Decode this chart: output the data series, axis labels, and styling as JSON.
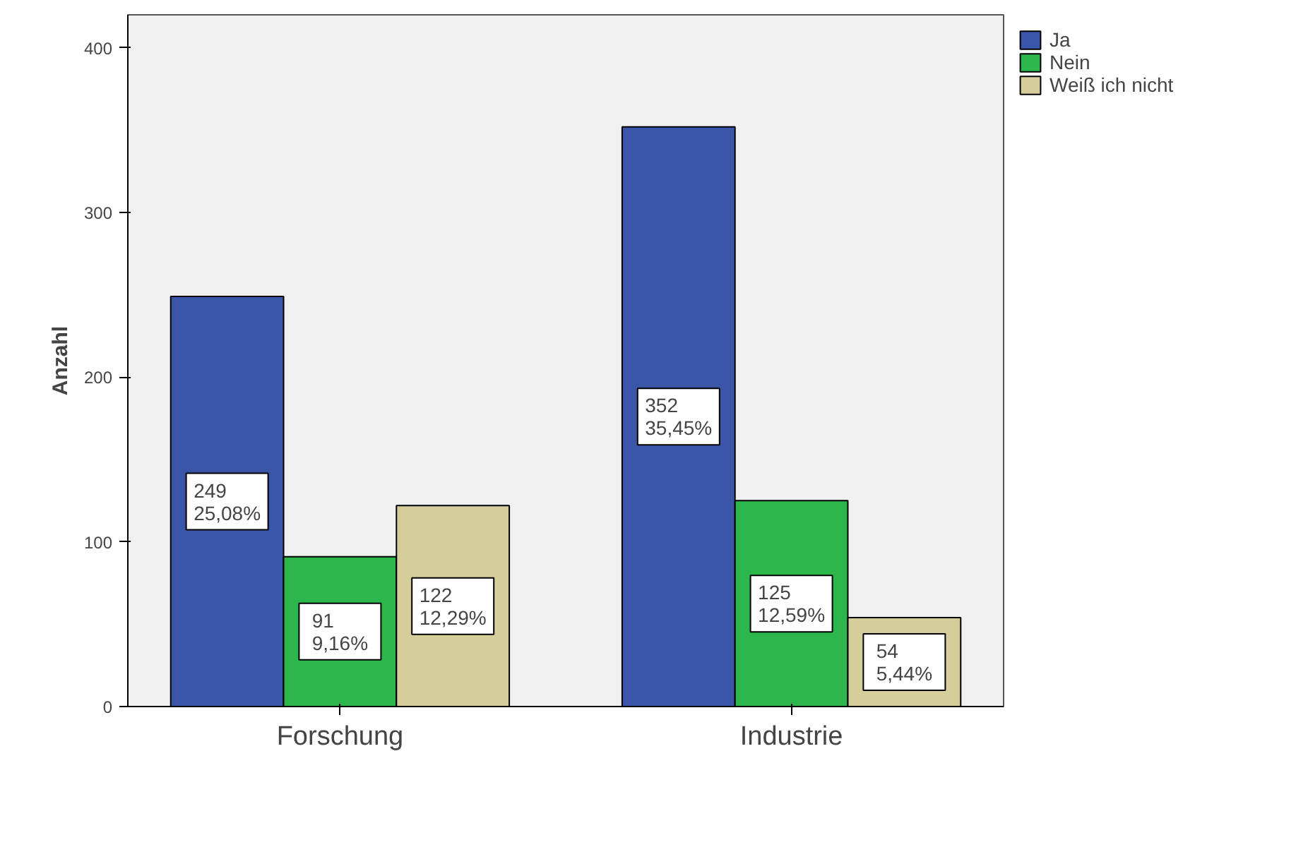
{
  "chart_data": {
    "type": "bar",
    "ylabel": "Anzahl",
    "categories": [
      "Forschung",
      "Industrie"
    ],
    "ylim": [
      0,
      420
    ],
    "yticks": [
      0,
      100,
      200,
      300,
      400
    ],
    "grid": false,
    "legend": "top right",
    "series": [
      {
        "name": "Ja",
        "color": "#3b55a8",
        "values": [
          249,
          352
        ],
        "value_labels": [
          "249\n25,08%",
          "352\n35,45%"
        ]
      },
      {
        "name": "Nein",
        "color": "#2db64b",
        "values": [
          91,
          125
        ],
        "value_labels": [
          "91\n9,16%",
          "125\n12,59%"
        ]
      },
      {
        "name": "Weiß ich nicht",
        "color": "#d5cd9a",
        "values": [
          122,
          54
        ],
        "value_labels": [
          "122\n12,29%",
          "54\n5,44%"
        ]
      }
    ]
  }
}
